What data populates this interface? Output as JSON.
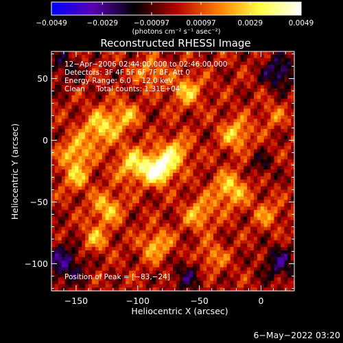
{
  "chart_data": {
    "type": "heatmap",
    "title": "Reconstructed RHESSI Image",
    "xlabel": "Heliocentric X (arcsec)",
    "ylabel": "Heliocentric Y (arcsec)",
    "xlim": [
      -170,
      27
    ],
    "ylim": [
      -122,
      72
    ],
    "x_ticks": [
      -150,
      -100,
      -50,
      0
    ],
    "y_ticks": [
      -100,
      -50,
      0,
      50
    ],
    "x_tick_labels": [
      "−150",
      "−100",
      "−50",
      "0"
    ],
    "y_tick_labels": [
      "−100",
      "−50",
      "0",
      "50"
    ],
    "colorbar": {
      "min": -0.0049,
      "max": 0.0049,
      "tick_values": [
        -0.0049,
        -0.0029,
        -0.00097,
        0.00097,
        0.0029,
        0.0049
      ],
      "tick_labels": [
        "−0.0049",
        "−0.0029",
        "−0.00097",
        "0.00097",
        "0.0029",
        "0.0049"
      ],
      "units_label": "(photons cm⁻² s⁻¹ asec⁻²)",
      "colors": [
        "#0000ff",
        "#5a00b4",
        "#000000",
        "#b40000",
        "#ff7a00",
        "#ffff40",
        "#ffffff"
      ]
    },
    "annotations": [
      "12−Apr−2006 02:44:00.000 to 02:46:00.000",
      "Detectors: 3F 4F 5F 6F 7F 8F, Att 0",
      "Energy Range: 6.0 − 12.0 keV",
      "Clean     Total counts: 1.31E+04"
    ],
    "peak_label": "Position of Peak = [−83,−24]",
    "peak": [
      -83,
      -24
    ],
    "sources": [
      {
        "x": -83,
        "y": -24,
        "sigma": 8,
        "amp": 0.0049
      },
      {
        "x": -103,
        "y": -20,
        "sigma": 10,
        "amp": 0.003
      },
      {
        "x": -70,
        "y": -10,
        "sigma": 9,
        "amp": 0.0028
      },
      {
        "x": -130,
        "y": 10,
        "sigma": 10,
        "amp": 0.003
      },
      {
        "x": -150,
        "y": -10,
        "sigma": 9,
        "amp": 0.0026
      },
      {
        "x": -110,
        "y": 20,
        "sigma": 8,
        "amp": 0.0022
      },
      {
        "x": -60,
        "y": 40,
        "sigma": 9,
        "amp": 0.0025
      },
      {
        "x": -90,
        "y": 55,
        "sigma": 8,
        "amp": 0.002
      },
      {
        "x": -20,
        "y": 5,
        "sigma": 9,
        "amp": 0.0026
      },
      {
        "x": -25,
        "y": -40,
        "sigma": 10,
        "amp": 0.0028
      },
      {
        "x": -50,
        "y": -60,
        "sigma": 9,
        "amp": 0.0023
      },
      {
        "x": -125,
        "y": -55,
        "sigma": 9,
        "amp": 0.0026
      },
      {
        "x": -150,
        "y": -30,
        "sigma": 8,
        "amp": 0.0022
      },
      {
        "x": -135,
        "y": -80,
        "sigma": 8,
        "amp": 0.0021
      },
      {
        "x": -85,
        "y": -85,
        "sigma": 9,
        "amp": 0.0024
      },
      {
        "x": -40,
        "y": -95,
        "sigma": 8,
        "amp": 0.0019
      },
      {
        "x": 5,
        "y": -60,
        "sigma": 8,
        "amp": 0.0017
      },
      {
        "x": 10,
        "y": 20,
        "sigma": 7,
        "amp": 0.0014
      },
      {
        "x": 15,
        "y": 55,
        "sigma": 9,
        "amp": -0.0028
      },
      {
        "x": -160,
        "y": -100,
        "sigma": 12,
        "amp": -0.0024
      },
      {
        "x": 15,
        "y": -100,
        "sigma": 10,
        "amp": -0.0022
      },
      {
        "x": -160,
        "y": 60,
        "sigma": 10,
        "amp": -0.0015
      },
      {
        "x": -60,
        "y": -110,
        "sigma": 10,
        "amp": -0.0016
      },
      {
        "x": 0,
        "y": -20,
        "sigma": 8,
        "amp": -0.0012
      }
    ]
  },
  "footer_date": "6−May−2022 03:20"
}
